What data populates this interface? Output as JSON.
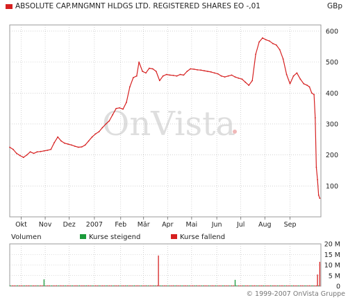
{
  "header": {
    "title": "ABSOLUTE CAP.MNGMNT HLDGS LTD. REGISTERED SHARES EO -,01",
    "currency": "GBp"
  },
  "watermark": "OnVista",
  "volume_panel": {
    "label": "Volumen",
    "legend_rising": "Kurse steigend",
    "legend_falling": "Kurse fallend"
  },
  "footer": {
    "copyright": "© 1999-2007 OnVista Gruppe"
  },
  "colors": {
    "series": "#d62020",
    "rising": "#1a9a3a",
    "falling": "#d62020",
    "grid": "#b8b8b8",
    "border": "#9a9a9a"
  },
  "chart_data": [
    {
      "type": "line",
      "series": [
        {
          "name": "",
          "values": [
            [
              0,
              225
            ],
            [
              3,
              218
            ],
            [
              6,
              205
            ],
            [
              9,
              198
            ],
            [
              12,
              192
            ],
            [
              15,
              200
            ],
            [
              18,
              210
            ],
            [
              21,
              205
            ],
            [
              24,
              210
            ],
            [
              27,
              211
            ],
            [
              30,
              213
            ],
            [
              33,
              215
            ],
            [
              36,
              218
            ],
            [
              39,
              240
            ],
            [
              42,
              258
            ],
            [
              45,
              245
            ],
            [
              48,
              238
            ],
            [
              51,
              235
            ],
            [
              54,
              232
            ],
            [
              57,
              228
            ],
            [
              60,
              225
            ],
            [
              63,
              226
            ],
            [
              66,
              232
            ],
            [
              69,
              245
            ],
            [
              72,
              258
            ],
            [
              75,
              268
            ],
            [
              78,
              275
            ],
            [
              81,
              288
            ],
            [
              84,
              300
            ],
            [
              87,
              310
            ],
            [
              90,
              330
            ],
            [
              93,
              350
            ],
            [
              96,
              352
            ],
            [
              99,
              348
            ],
            [
              102,
              370
            ],
            [
              105,
              420
            ],
            [
              108,
              450
            ],
            [
              111,
              455
            ],
            [
              113,
              500
            ],
            [
              116,
              470
            ],
            [
              119,
              465
            ],
            [
              122,
              480
            ],
            [
              125,
              478
            ],
            [
              128,
              470
            ],
            [
              131,
              440
            ],
            [
              134,
              455
            ],
            [
              137,
              460
            ],
            [
              140,
              458
            ],
            [
              143,
              457
            ],
            [
              146,
              455
            ],
            [
              149,
              460
            ],
            [
              152,
              458
            ],
            [
              155,
              470
            ],
            [
              158,
              478
            ],
            [
              161,
              477
            ],
            [
              164,
              475
            ],
            [
              167,
              474
            ],
            [
              170,
              472
            ],
            [
              173,
              470
            ],
            [
              176,
              468
            ],
            [
              179,
              465
            ],
            [
              182,
              462
            ],
            [
              185,
              455
            ],
            [
              188,
              452
            ],
            [
              191,
              455
            ],
            [
              194,
              458
            ],
            [
              197,
              452
            ],
            [
              200,
              448
            ],
            [
              203,
              445
            ],
            [
              206,
              435
            ],
            [
              209,
              425
            ],
            [
              212,
              440
            ],
            [
              215,
              525
            ],
            [
              218,
              565
            ],
            [
              221,
              578
            ],
            [
              224,
              572
            ],
            [
              227,
              568
            ],
            [
              230,
              560
            ],
            [
              233,
              555
            ],
            [
              236,
              540
            ],
            [
              239,
              510
            ],
            [
              242,
              460
            ],
            [
              245,
              430
            ],
            [
              248,
              455
            ],
            [
              251,
              465
            ],
            [
              254,
              445
            ],
            [
              257,
              430
            ],
            [
              260,
              425
            ],
            [
              262,
              420
            ],
            [
              264,
              400
            ],
            [
              266,
              395
            ],
            [
              267,
              320
            ],
            [
              268,
              160
            ],
            [
              269,
              120
            ],
            [
              270,
              70
            ],
            [
              271,
              60
            ]
          ]
        }
      ],
      "ylim": [
        0,
        620
      ],
      "yticks": [
        100,
        200,
        300,
        400,
        500,
        600
      ],
      "xlim": [
        0,
        272
      ],
      "xticks": [
        {
          "pos": 10,
          "label": "Okt"
        },
        {
          "pos": 31,
          "label": "Nov"
        },
        {
          "pos": 52,
          "label": "Dez"
        },
        {
          "pos": 74,
          "label": "2007"
        },
        {
          "pos": 97,
          "label": "Feb"
        },
        {
          "pos": 117,
          "label": "Mär"
        },
        {
          "pos": 138,
          "label": "Apr"
        },
        {
          "pos": 159,
          "label": "Mai"
        },
        {
          "pos": 181,
          "label": "Jun"
        },
        {
          "pos": 202,
          "label": "Jul"
        },
        {
          "pos": 223,
          "label": "Aug"
        },
        {
          "pos": 245,
          "label": "Sep"
        }
      ],
      "grid": true
    },
    {
      "type": "bar",
      "ylim": [
        0,
        20
      ],
      "yticks": [
        {
          "v": 0,
          "label": "0"
        },
        {
          "v": 5,
          "label": "5 M"
        },
        {
          "v": 10,
          "label": "10 M"
        },
        {
          "v": 15,
          "label": "15 M"
        },
        {
          "v": 20,
          "label": "20 M"
        }
      ],
      "spikes": [
        {
          "x": 30,
          "v": 3.2,
          "dir": "rising"
        },
        {
          "x": 130,
          "v": 14.5,
          "dir": "falling"
        },
        {
          "x": 197,
          "v": 3.0,
          "dir": "rising"
        },
        {
          "x": 271,
          "v": 11.5,
          "dir": "falling"
        },
        {
          "x": 269,
          "v": 5.5,
          "dir": "falling"
        }
      ],
      "baseline": 0.4,
      "grid": true
    }
  ]
}
